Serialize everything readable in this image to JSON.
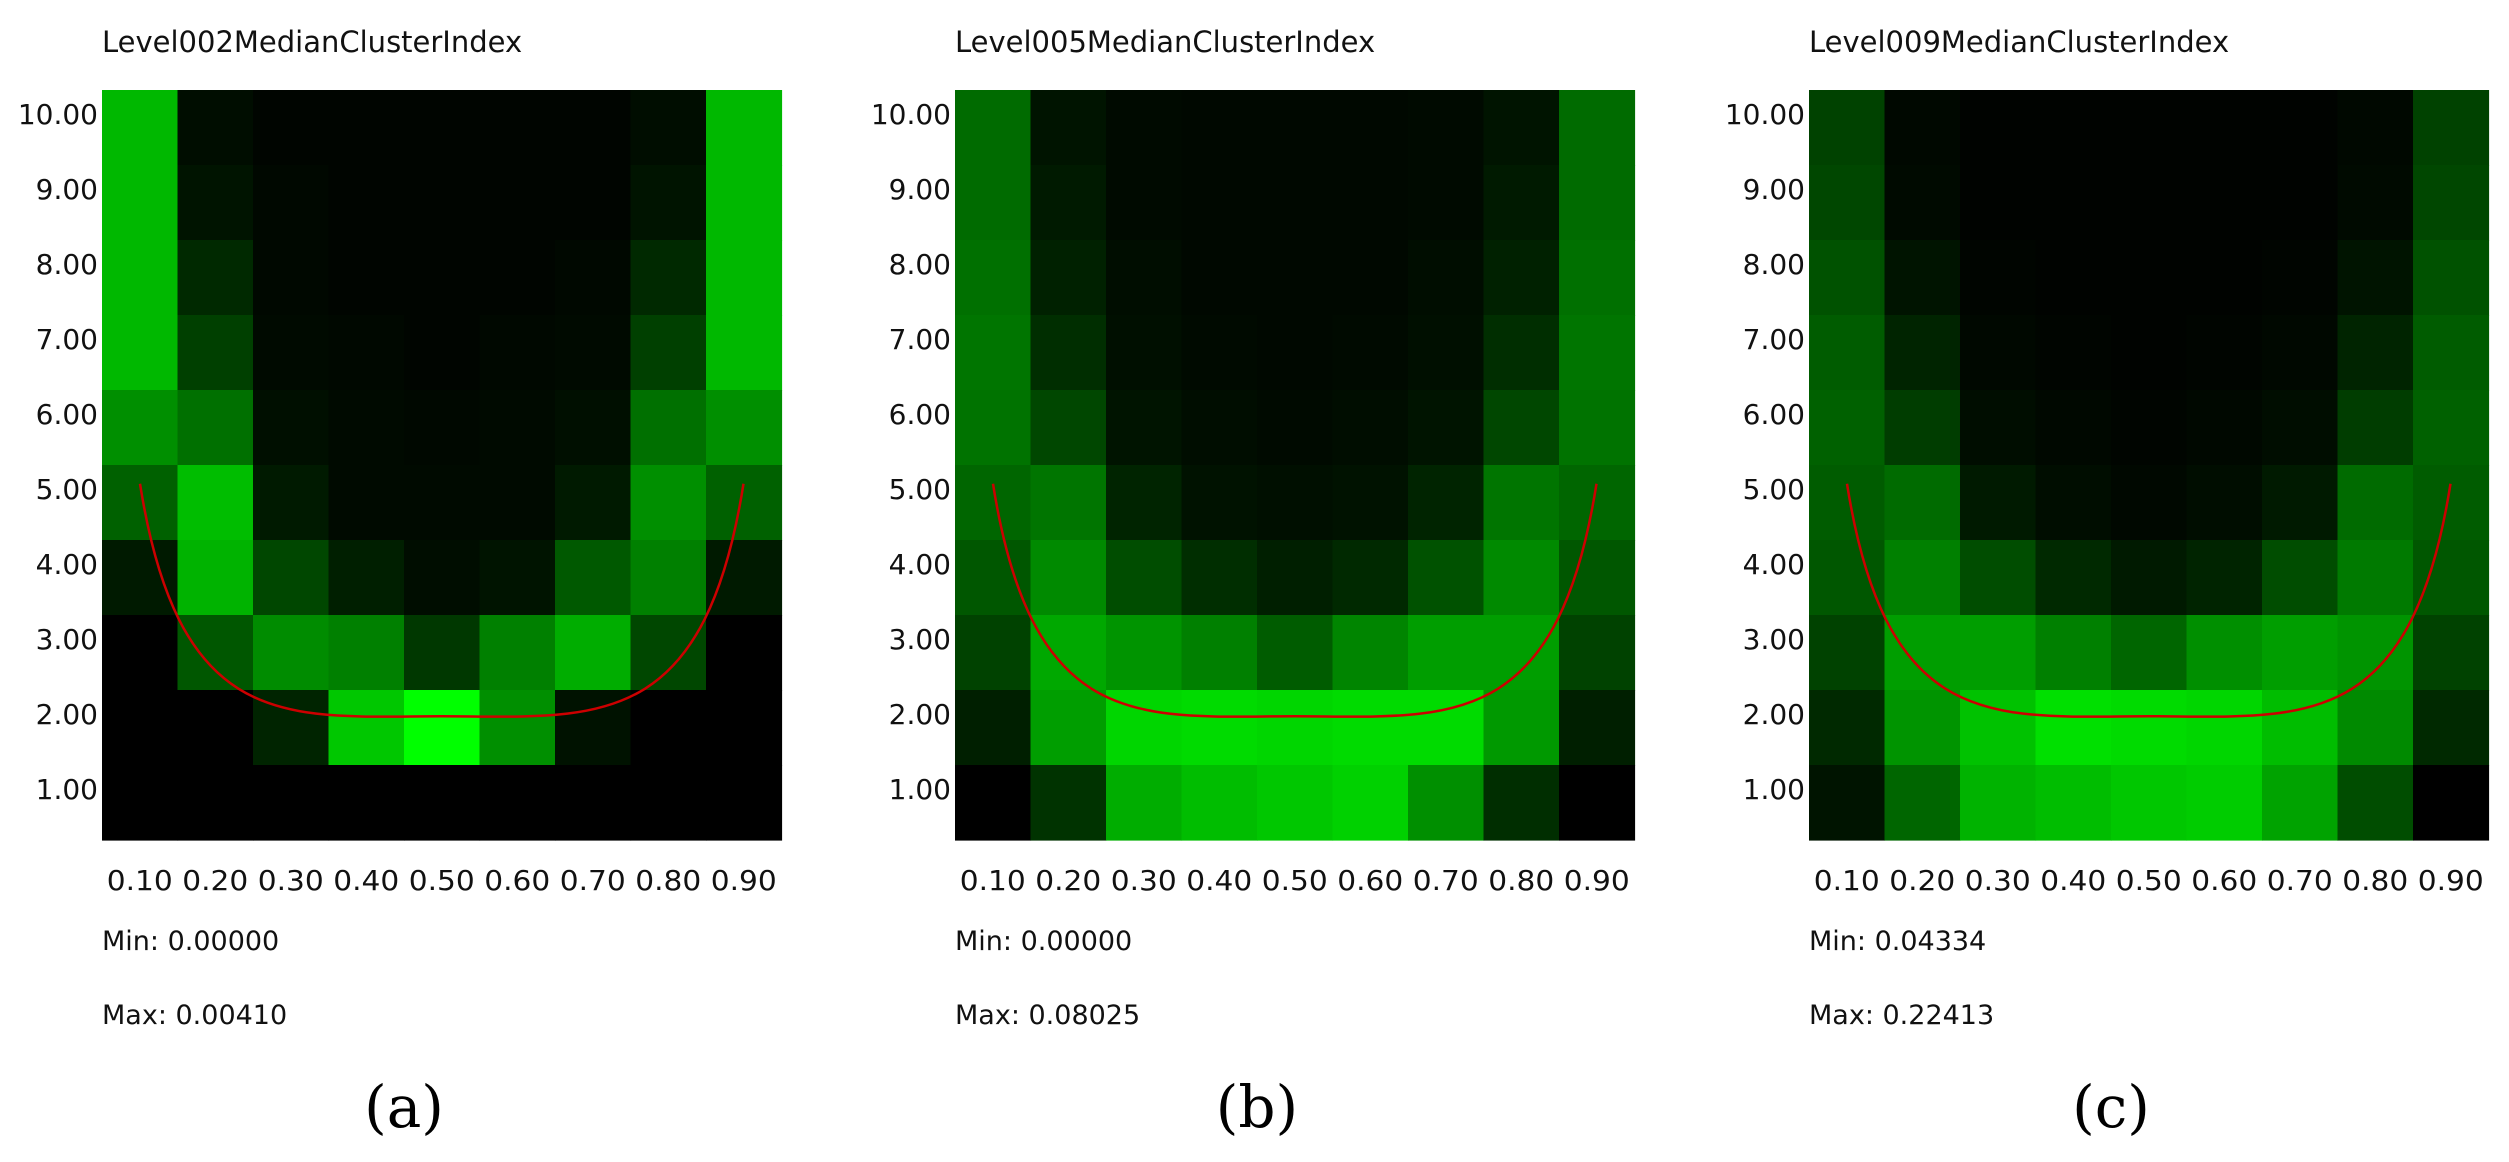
{
  "chart_data": [
    {
      "type": "heatmap",
      "title": "Level002MedianClusterIndex",
      "x": [
        "0.10",
        "0.20",
        "0.30",
        "0.40",
        "0.50",
        "0.60",
        "0.70",
        "0.80",
        "0.90"
      ],
      "y": [
        "10.00",
        "9.00",
        "8.00",
        "7.00",
        "6.00",
        "5.00",
        "4.00",
        "3.00",
        "2.00",
        "1.00"
      ],
      "values": [
        [
          0.72,
          0.05,
          0.02,
          0.02,
          0.02,
          0.02,
          0.02,
          0.05,
          0.72
        ],
        [
          0.72,
          0.08,
          0.03,
          0.02,
          0.02,
          0.02,
          0.02,
          0.08,
          0.72
        ],
        [
          0.72,
          0.16,
          0.03,
          0.02,
          0.02,
          0.02,
          0.03,
          0.16,
          0.72
        ],
        [
          0.72,
          0.25,
          0.04,
          0.03,
          0.02,
          0.03,
          0.04,
          0.25,
          0.72
        ],
        [
          0.56,
          0.44,
          0.06,
          0.04,
          0.03,
          0.04,
          0.06,
          0.44,
          0.56
        ],
        [
          0.38,
          0.74,
          0.1,
          0.04,
          0.04,
          0.04,
          0.1,
          0.56,
          0.38
        ],
        [
          0.1,
          0.7,
          0.28,
          0.12,
          0.05,
          0.08,
          0.35,
          0.5,
          0.1
        ],
        [
          0.0,
          0.34,
          0.55,
          0.5,
          0.22,
          0.5,
          0.68,
          0.28,
          0.0
        ],
        [
          0.0,
          0.0,
          0.14,
          0.78,
          1.0,
          0.56,
          0.07,
          0.0,
          0.0
        ],
        [
          0.0,
          0.0,
          0.0,
          0.0,
          0.0,
          0.0,
          0.0,
          0.0,
          0.0
        ]
      ],
      "color": "#00ff00",
      "min_label": "Min: 0.00000",
      "max_label": "Max: 0.00410",
      "panel_label": "(a)"
    },
    {
      "type": "heatmap",
      "title": "Level005MedianClusterIndex",
      "x": [
        "0.10",
        "0.20",
        "0.30",
        "0.40",
        "0.50",
        "0.60",
        "0.70",
        "0.80",
        "0.90"
      ],
      "y": [
        "10.00",
        "9.00",
        "8.00",
        "7.00",
        "6.00",
        "5.00",
        "4.00",
        "3.00",
        "2.00",
        "1.00"
      ],
      "values": [
        [
          0.42,
          0.08,
          0.04,
          0.03,
          0.03,
          0.03,
          0.04,
          0.08,
          0.42
        ],
        [
          0.42,
          0.1,
          0.04,
          0.03,
          0.03,
          0.03,
          0.04,
          0.1,
          0.42
        ],
        [
          0.44,
          0.13,
          0.05,
          0.03,
          0.03,
          0.03,
          0.05,
          0.13,
          0.44
        ],
        [
          0.46,
          0.18,
          0.06,
          0.04,
          0.03,
          0.04,
          0.06,
          0.18,
          0.46
        ],
        [
          0.45,
          0.28,
          0.08,
          0.05,
          0.04,
          0.05,
          0.08,
          0.28,
          0.45
        ],
        [
          0.4,
          0.46,
          0.14,
          0.07,
          0.06,
          0.07,
          0.14,
          0.46,
          0.4
        ],
        [
          0.34,
          0.54,
          0.3,
          0.18,
          0.12,
          0.16,
          0.32,
          0.54,
          0.34
        ],
        [
          0.26,
          0.66,
          0.58,
          0.5,
          0.36,
          0.52,
          0.62,
          0.62,
          0.26
        ],
        [
          0.12,
          0.62,
          0.84,
          0.86,
          0.84,
          0.86,
          0.86,
          0.6,
          0.12
        ],
        [
          0.0,
          0.2,
          0.68,
          0.74,
          0.78,
          0.82,
          0.56,
          0.18,
          0.0
        ]
      ],
      "color": "#00ff00",
      "min_label": "Min: 0.00000",
      "max_label": "Max: 0.08025",
      "panel_label": "(b)"
    },
    {
      "type": "heatmap",
      "title": "Level009MedianClusterIndex",
      "x": [
        "0.10",
        "0.20",
        "0.30",
        "0.40",
        "0.50",
        "0.60",
        "0.70",
        "0.80",
        "0.90"
      ],
      "y": [
        "10.00",
        "9.00",
        "8.00",
        "7.00",
        "6.00",
        "5.00",
        "4.00",
        "3.00",
        "2.00",
        "1.00"
      ],
      "values": [
        [
          0.26,
          0.03,
          0.01,
          0.01,
          0.01,
          0.01,
          0.01,
          0.03,
          0.26
        ],
        [
          0.28,
          0.04,
          0.01,
          0.01,
          0.01,
          0.01,
          0.01,
          0.04,
          0.28
        ],
        [
          0.32,
          0.08,
          0.02,
          0.01,
          0.01,
          0.01,
          0.02,
          0.08,
          0.32
        ],
        [
          0.36,
          0.14,
          0.03,
          0.02,
          0.01,
          0.02,
          0.03,
          0.14,
          0.36
        ],
        [
          0.38,
          0.24,
          0.05,
          0.03,
          0.02,
          0.03,
          0.05,
          0.24,
          0.38
        ],
        [
          0.36,
          0.42,
          0.1,
          0.05,
          0.03,
          0.05,
          0.1,
          0.42,
          0.36
        ],
        [
          0.34,
          0.5,
          0.3,
          0.16,
          0.1,
          0.14,
          0.3,
          0.48,
          0.34
        ],
        [
          0.26,
          0.62,
          0.62,
          0.5,
          0.4,
          0.56,
          0.62,
          0.58,
          0.26
        ],
        [
          0.16,
          0.58,
          0.76,
          0.88,
          0.86,
          0.84,
          0.74,
          0.54,
          0.16
        ],
        [
          0.08,
          0.4,
          0.7,
          0.74,
          0.78,
          0.8,
          0.64,
          0.3,
          0.0
        ]
      ],
      "color": "#00ff00",
      "min_label": "Min: 0.04334",
      "max_label": "Max: 0.22413",
      "panel_label": "(c)"
    }
  ],
  "overlay": {
    "curve_color": "#cc0000"
  }
}
